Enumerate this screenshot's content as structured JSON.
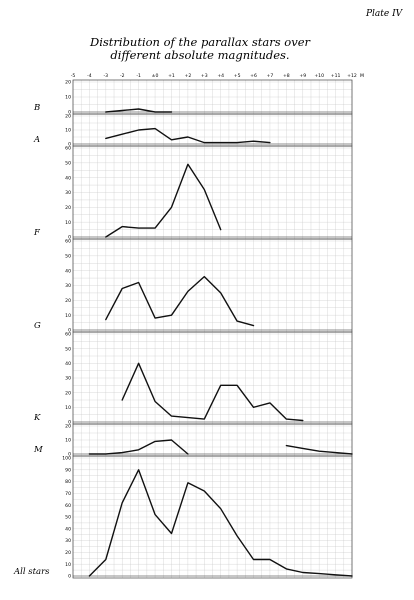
{
  "plate": {
    "label": "Plate IV",
    "title_line1": "Distribution of the parallax stars over",
    "title_line2": "different absolute magnitudes.",
    "x_axis_label": "M"
  },
  "chart_data": {
    "type": "line",
    "title": "Distribution of the parallax stars over different absolute magnitudes.",
    "xlabel": "M",
    "xlim": [
      -5,
      12
    ],
    "x_ticks": [
      "-5",
      "-4",
      "-3",
      "-2",
      "-1",
      "±0",
      "+1",
      "+2",
      "+3",
      "+4",
      "+5",
      "+6",
      "+7",
      "+8",
      "+9",
      "+10",
      "+11",
      "+12"
    ],
    "grid": true,
    "panels": [
      {
        "name": "B",
        "ylim": [
          0,
          20
        ],
        "y_ticks": [
          "0",
          "10",
          "20"
        ],
        "segments": [
          {
            "x": [
              -3,
              -2,
              -1,
              0,
              1
            ],
            "y": [
              0,
              1,
              2,
              0,
              0
            ]
          }
        ]
      },
      {
        "name": "A",
        "ylim": [
          0,
          20
        ],
        "y_ticks": [
          "0",
          "10",
          "20"
        ],
        "segments": [
          {
            "x": [
              -3,
              -2,
              -1,
              0,
              1,
              2,
              3,
              4,
              5,
              6,
              7
            ],
            "y": [
              4,
              7,
              10,
              11,
              3,
              5,
              1,
              1,
              1,
              2,
              1
            ]
          }
        ]
      },
      {
        "name": "F",
        "ylim": [
          0,
          60
        ],
        "y_ticks": [
          "0",
          "10",
          "20",
          "30",
          "40",
          "50",
          "60"
        ],
        "segments": [
          {
            "x": [
              -3,
              -2,
              -1,
              0,
              1,
              2,
              3,
              4
            ],
            "y": [
              0,
              7,
              6,
              6,
              20,
              49,
              32,
              5
            ]
          }
        ]
      },
      {
        "name": "G",
        "ylim": [
          0,
          60
        ],
        "y_ticks": [
          "0",
          "10",
          "20",
          "30",
          "40",
          "50",
          "60"
        ],
        "segments": [
          {
            "x": [
              -3,
              -2,
              -1,
              0,
              1,
              2,
              3,
              4,
              5,
              6
            ],
            "y": [
              7,
              28,
              32,
              8,
              10,
              26,
              36,
              25,
              6,
              3
            ]
          }
        ]
      },
      {
        "name": "K",
        "ylim": [
          0,
          60
        ],
        "y_ticks": [
          "0",
          "10",
          "20",
          "30",
          "40",
          "50",
          "60"
        ],
        "segments": [
          {
            "x": [
              -2,
              -1,
              0,
              1,
              2,
              3,
              4,
              5,
              6,
              7,
              8,
              9
            ],
            "y": [
              15,
              40,
              14,
              4,
              3,
              2,
              25,
              25,
              10,
              13,
              2,
              1
            ]
          }
        ]
      },
      {
        "name": "M",
        "ylim": [
          0,
          20
        ],
        "y_ticks": [
          "0",
          "10",
          "20"
        ],
        "segments": [
          {
            "x": [
              -4,
              -3,
              -2,
              -1,
              0,
              1,
              2
            ],
            "y": [
              0,
              0,
              1,
              3,
              9,
              10,
              0
            ]
          },
          {
            "x": [
              8,
              9,
              10,
              11,
              12
            ],
            "y": [
              6,
              4,
              2,
              1,
              0
            ]
          }
        ]
      },
      {
        "name": "All stars",
        "ylim": [
          0,
          100
        ],
        "y_ticks": [
          "0",
          "10",
          "20",
          "30",
          "40",
          "50",
          "60",
          "70",
          "80",
          "90",
          "100"
        ],
        "segments": [
          {
            "x": [
              -4,
              -3,
              -2,
              -1,
              0,
              1,
              2,
              3,
              4,
              5,
              6,
              7,
              8,
              9,
              10,
              11,
              12
            ],
            "y": [
              0,
              14,
              62,
              90,
              52,
              36,
              79,
              72,
              57,
              34,
              14,
              14,
              6,
              3,
              2,
              1,
              0
            ]
          }
        ]
      }
    ]
  }
}
